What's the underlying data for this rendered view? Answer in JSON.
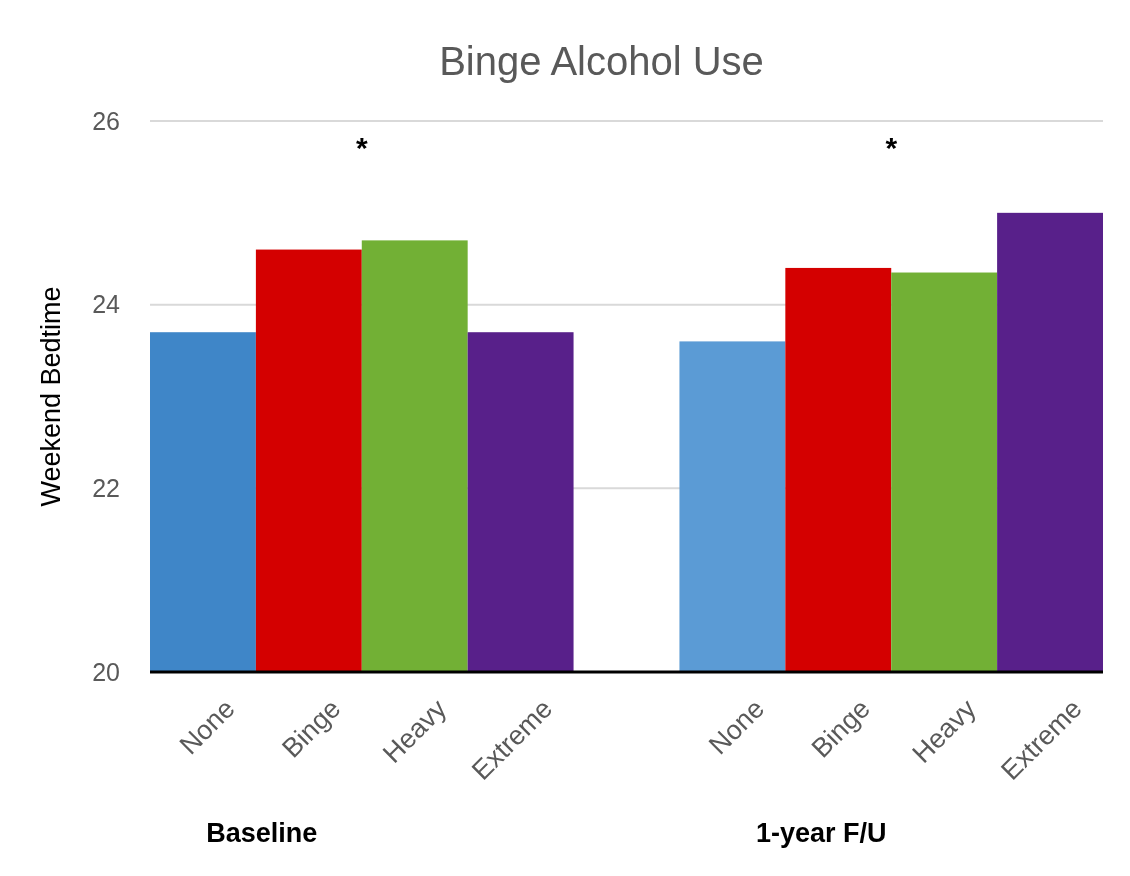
{
  "chart_data": {
    "type": "bar",
    "title": "Binge Alcohol Use",
    "ylabel": "Weekend Bedtime",
    "categories": [
      "None",
      "Binge",
      "Heavy",
      "Extreme",
      null,
      "None",
      "Binge",
      "Heavy",
      "Extreme"
    ],
    "values": [
      23.7,
      24.6,
      24.7,
      23.7,
      null,
      23.6,
      24.4,
      24.35,
      25.0
    ],
    "colors": [
      "#3f86c8",
      "#d40000",
      "#72b035",
      "#58208a",
      null,
      "#5b9bd5",
      "#d40000",
      "#72b035",
      "#58208a"
    ],
    "ylim": [
      20,
      26
    ],
    "yticks": [
      20,
      22,
      24,
      26
    ],
    "grid": "y",
    "annotations": [
      "*",
      "*",
      "Baseline",
      "1-year F/U"
    ]
  }
}
